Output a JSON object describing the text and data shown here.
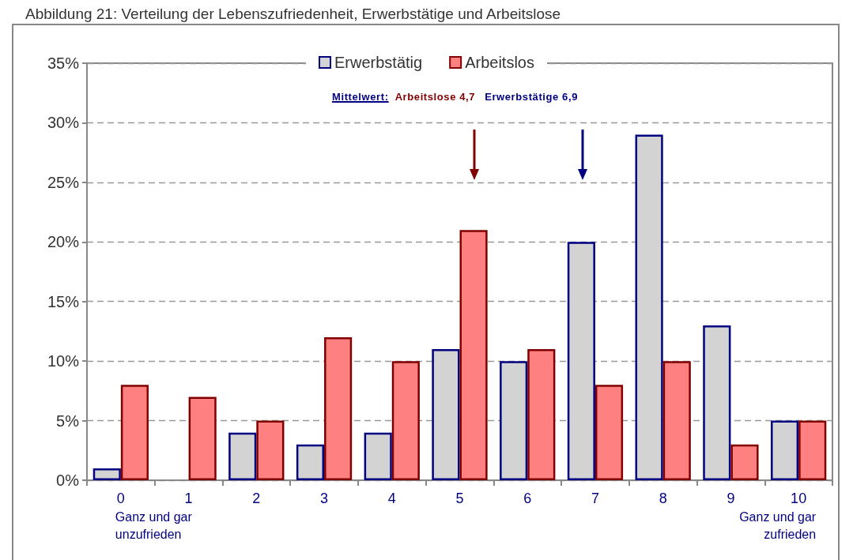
{
  "chart_data": {
    "type": "bar",
    "title": "Abbildung 21: Verteilung der Lebenszufriedenheit, Erwerbstätige und Arbeitslose",
    "categories": [
      "0",
      "1",
      "2",
      "3",
      "4",
      "5",
      "6",
      "7",
      "8",
      "9",
      "10"
    ],
    "series": [
      {
        "name": "Erwerbstätig",
        "color": "#d3d3d3",
        "values": [
          1,
          0,
          4,
          3,
          4,
          11,
          10,
          20,
          29,
          13,
          5
        ]
      },
      {
        "name": "Arbeitslos",
        "color": "#ff8080",
        "values": [
          8,
          7,
          5,
          12,
          10,
          21,
          11,
          8,
          10,
          3,
          5
        ]
      }
    ],
    "ylim": [
      0,
      35
    ],
    "yticks": [
      {
        "value": 0,
        "label": "0%"
      },
      {
        "value": 5,
        "label": "5%"
      },
      {
        "value": 10,
        "label": "10%"
      },
      {
        "value": 15,
        "label": "15%"
      },
      {
        "value": 20,
        "label": "20%"
      },
      {
        "value": 25,
        "label": "25%"
      },
      {
        "value": 30,
        "label": "30%"
      },
      {
        "value": 35,
        "label": "35%"
      }
    ],
    "grid": "y",
    "legend": "top",
    "annotations": [
      "Mittelwert:",
      "Arbeitslose 4,7",
      "Erwerbstätige 6,9",
      "Ganz und gar unzufrieden",
      "Ganz und gar zufrieden"
    ]
  }
}
